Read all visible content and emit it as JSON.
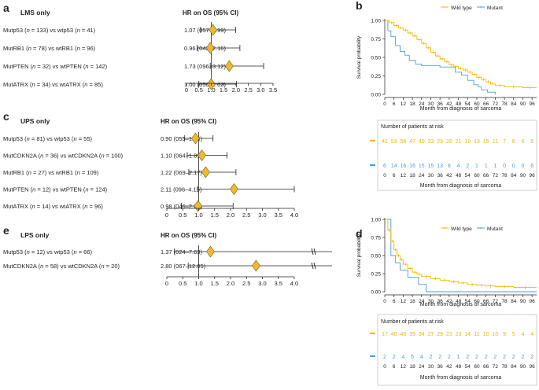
{
  "chart_data": [
    {
      "type": "forest",
      "panel_label": "a",
      "title": "LMS only",
      "header": "HR on OS (95% CI)",
      "xlim": [
        0,
        3.5
      ],
      "ticks": [
        "0",
        "0.5",
        "1.0",
        "1.5",
        "2.0",
        "2.5",
        "3.0",
        "3.5"
      ],
      "rows": [
        {
          "label": "Mutp53 (n = 133) vs wtp53 (n = 41)",
          "hr": 1.07,
          "lo": 0.57,
          "hi": 1.99,
          "text": "1.07 (057–1.99)"
        },
        {
          "label": "MutRB1 (n = 78) vs wtRB1 (n = 96)",
          "hr": 0.96,
          "lo": 0.43,
          "hi": 2.16,
          "text": "0.96 (043–2.16)"
        },
        {
          "label": "MutPTEN (n = 32) vs wtPTEN (n = 142)",
          "hr": 1.73,
          "lo": 0.96,
          "hi": 3.12,
          "text": "1.73 (096–3.12)"
        },
        {
          "label": "MutATRX (n = 34) vs wtATRX (n = 85)",
          "hr": 1.0,
          "lo": 0.5,
          "hi": 2.02,
          "text": "1.00 (050–2.02)"
        }
      ]
    },
    {
      "type": "forest",
      "panel_label": "c",
      "title": "UPS only",
      "header": "HR on OS (95% CI)",
      "xlim": [
        0,
        4.0
      ],
      "ticks": [
        "0",
        "0.5",
        "1.0",
        "1.5",
        "2.0",
        "2.5",
        "3.0",
        "3.5",
        "4.0"
      ],
      "rows": [
        {
          "label": "Mutp53 (n = 81) vs wtp53 (n = 55)",
          "hr": 0.9,
          "lo": 0.55,
          "hi": 1.45,
          "text": "0.90 (055–1.45)"
        },
        {
          "label": "MutCDKN2A (n = 36) vs wtCDKN2A (n = 100)",
          "hr": 1.1,
          "lo": 0.64,
          "hi": 1.89,
          "text": "1.10 (064–1.89)"
        },
        {
          "label": "MutRB1 (n = 27) vs wtRB1 (n = 109)",
          "hr": 1.22,
          "lo": 0.69,
          "hi": 2.17,
          "text": "1.22 (069–2.17)"
        },
        {
          "label": "MutPTEN (n = 12) vs wtPTEN (n = 124)",
          "hr": 2.11,
          "lo": 0.96,
          "hi": 4.15,
          "text": "2.11 (096–4.15)"
        },
        {
          "label": "MutATRX (n = 14) vs wtATRX (n = 96)",
          "hr": 0.98,
          "lo": 0.46,
          "hi": 2.08,
          "text": "0.98 (046–2.08)"
        }
      ]
    },
    {
      "type": "forest",
      "panel_label": "e",
      "title": "LPS only",
      "header": "HR on OS (95% CI)",
      "xlim": [
        0,
        4.0
      ],
      "ticks": [
        "0",
        "0.5",
        "1.0",
        "1.5",
        "2.0",
        "2.5",
        "3.0",
        "3.5",
        "4.0"
      ],
      "rows": [
        {
          "label": "Mutp53 (n = 12) vs wtp53 (n = 66)",
          "hr": 1.37,
          "lo": 0.24,
          "hi": 7.63,
          "text": "1.37 (024–7.63)",
          "broken": true
        },
        {
          "label": "MutCDKN2A (n = 58) vs wtCDKN2A (n = 20)",
          "hr": 2.8,
          "lo": 0.67,
          "hi": 12.05,
          "text": "2.80 (067–12.05)",
          "broken": true
        }
      ]
    },
    {
      "type": "kaplan-meier",
      "panel_label": "b",
      "legend": [
        "Wild type",
        "Mutant"
      ],
      "colors": {
        "wild": "#f2b705",
        "mutant": "#4a9fd8"
      },
      "ylabel": "Survival probability",
      "xlabel": "Month from diagnosis of sarcoma",
      "yticks": [
        "0.00",
        "0.25",
        "0.50",
        "0.75",
        "1.00"
      ],
      "xticks": [
        "0",
        "6",
        "12",
        "18",
        "24",
        "30",
        "36",
        "42",
        "48",
        "54",
        "60",
        "66",
        "72",
        "78",
        "84",
        "90",
        "96"
      ],
      "wild_curve": [
        [
          0,
          1
        ],
        [
          3,
          0.97
        ],
        [
          6,
          0.93
        ],
        [
          9,
          0.9
        ],
        [
          12,
          0.87
        ],
        [
          15,
          0.83
        ],
        [
          18,
          0.79
        ],
        [
          21,
          0.74
        ],
        [
          24,
          0.69
        ],
        [
          27,
          0.63
        ],
        [
          30,
          0.57
        ],
        [
          33,
          0.52
        ],
        [
          36,
          0.48
        ],
        [
          39,
          0.44
        ],
        [
          42,
          0.4
        ],
        [
          45,
          0.38
        ],
        [
          48,
          0.35
        ],
        [
          51,
          0.33
        ],
        [
          54,
          0.3
        ],
        [
          57,
          0.27
        ],
        [
          60,
          0.23
        ],
        [
          63,
          0.2
        ],
        [
          66,
          0.17
        ],
        [
          69,
          0.14
        ],
        [
          72,
          0.12
        ],
        [
          78,
          0.1
        ],
        [
          90,
          0.09
        ],
        [
          99,
          0.09
        ]
      ],
      "mutant_curve": [
        [
          0,
          1
        ],
        [
          2,
          0.86
        ],
        [
          4,
          0.78
        ],
        [
          7,
          0.66
        ],
        [
          10,
          0.58
        ],
        [
          13,
          0.53
        ],
        [
          16,
          0.46
        ],
        [
          20,
          0.41
        ],
        [
          24,
          0.39
        ],
        [
          30,
          0.39
        ],
        [
          36,
          0.37
        ],
        [
          44,
          0.37
        ],
        [
          46,
          0.3
        ],
        [
          50,
          0.26
        ],
        [
          54,
          0.19
        ],
        [
          58,
          0.13
        ],
        [
          61,
          0.1
        ],
        [
          63,
          0.06
        ],
        [
          67,
          0.03
        ],
        [
          72,
          0.0
        ]
      ],
      "risk_title": "Number of patients at risk",
      "risk_wild": [
        "41",
        "53",
        "56",
        "47",
        "40",
        "33",
        "29",
        "28",
        "21",
        "19",
        "13",
        "15",
        "11",
        "7",
        "6",
        "6",
        "6"
      ],
      "risk_mutant": [
        "6",
        "14",
        "16",
        "16",
        "15",
        "15",
        "13",
        "8",
        "4",
        "2",
        "1",
        "1",
        "1",
        "0",
        "0",
        "0",
        "6"
      ]
    },
    {
      "type": "kaplan-meier",
      "panel_label": "d",
      "legend": [
        "Wild type",
        "Mutant"
      ],
      "colors": {
        "wild": "#f2b705",
        "mutant": "#4a9fd8"
      },
      "ylabel": "Survival probability",
      "xlabel": "Month from diagnosis of sarcoma",
      "yticks": [
        "0.00",
        "0.25",
        "0.50",
        "0.75",
        "1.00"
      ],
      "xticks": [
        "0",
        "6",
        "12",
        "18",
        "24",
        "30",
        "36",
        "42",
        "48",
        "54",
        "60",
        "66",
        "72",
        "78",
        "84",
        "90",
        "96"
      ],
      "wild_curve": [
        [
          0,
          1
        ],
        [
          2,
          0.85
        ],
        [
          4,
          0.7
        ],
        [
          6,
          0.58
        ],
        [
          8,
          0.5
        ],
        [
          10,
          0.44
        ],
        [
          12,
          0.38
        ],
        [
          15,
          0.32
        ],
        [
          18,
          0.27
        ],
        [
          21,
          0.24
        ],
        [
          24,
          0.21
        ],
        [
          30,
          0.18
        ],
        [
          36,
          0.16
        ],
        [
          42,
          0.14
        ],
        [
          48,
          0.12
        ],
        [
          54,
          0.1
        ],
        [
          60,
          0.09
        ],
        [
          66,
          0.08
        ],
        [
          72,
          0.07
        ],
        [
          84,
          0.06
        ],
        [
          99,
          0.06
        ]
      ],
      "mutant_curve": [
        [
          0,
          1
        ],
        [
          3,
          1
        ],
        [
          4,
          0.5
        ],
        [
          6,
          0.5
        ],
        [
          7,
          0.4
        ],
        [
          9,
          0.4
        ],
        [
          10,
          0.3
        ],
        [
          14,
          0.3
        ],
        [
          15,
          0.2
        ],
        [
          21,
          0.2
        ],
        [
          22,
          0.1
        ],
        [
          26,
          0.1
        ],
        [
          27,
          0.0
        ],
        [
          99,
          0.0
        ]
      ],
      "risk_title": "Number of patients at risk",
      "risk_wild": [
        "17",
        "40",
        "48",
        "39",
        "34",
        "27",
        "29",
        "23",
        "23",
        "14",
        "11",
        "10",
        "10",
        "9",
        "5",
        "4",
        "4"
      ],
      "risk_mutant": [
        "2",
        "2",
        "4",
        "5",
        "4",
        "2",
        "2",
        "2",
        "1",
        "2",
        "2",
        "2",
        "2",
        "2",
        "2",
        "2",
        "2"
      ]
    }
  ]
}
